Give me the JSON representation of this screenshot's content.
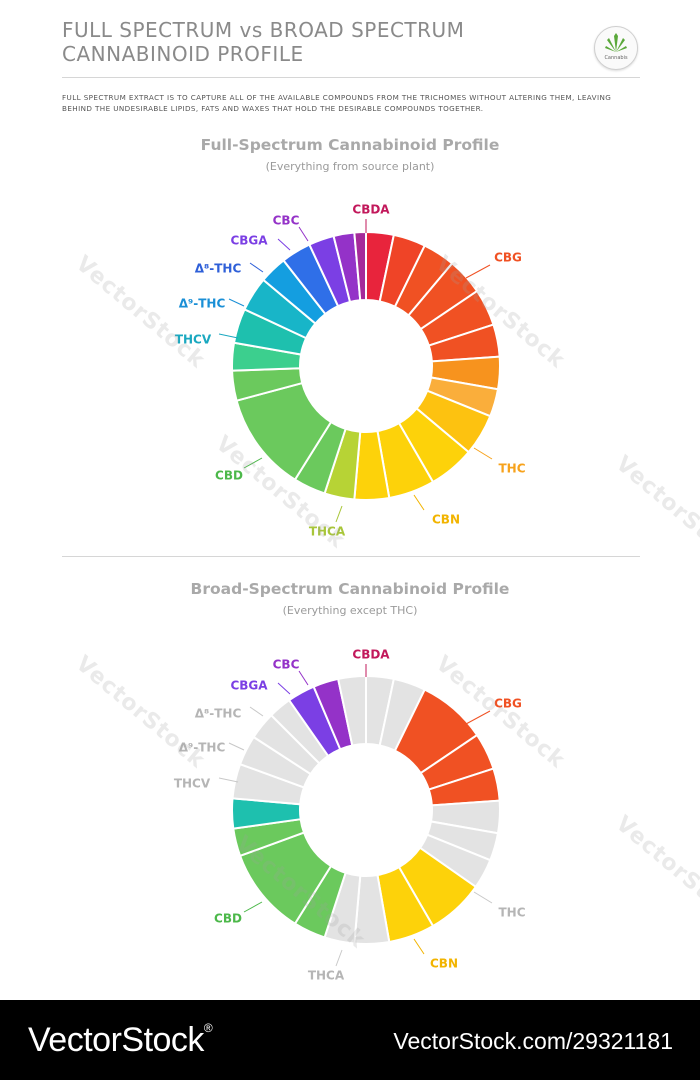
{
  "header": {
    "title_line1": "FULL SPECTRUM vs BROAD SPECTRUM",
    "title_line2": "CANNABINOID PROFILE",
    "logo_text": "Cannabis",
    "intro": "Full spectrum extract is to capture all of the available compounds from the trichomes without altering them, leaving behind the undesirable lipids, fats and waxes that hold the desirable compounds together."
  },
  "colors": {
    "inactive": "#e3e3e3",
    "label_inactive": "#b5b5b5",
    "leader": "#c8c8c8"
  },
  "diagrams": [
    {
      "title": "Full-Spectrum Cannabinoid Profile",
      "subtitle": "(Everything from source plant)",
      "segments": [
        {
          "color": "#c2185b",
          "active": true
        },
        {
          "color": "#e8243c",
          "active": true
        },
        {
          "color": "#ef4427",
          "active": true
        },
        {
          "color": "#f05123",
          "active": true
        },
        {
          "color": "#f05123",
          "active": true
        },
        {
          "color": "#f05123",
          "active": true
        },
        {
          "color": "#f05123",
          "active": true
        },
        {
          "color": "#f7931e",
          "active": true
        },
        {
          "color": "#faae3b",
          "active": true
        },
        {
          "color": "#fdc210",
          "active": true
        },
        {
          "color": "#fdd20a",
          "active": true
        },
        {
          "color": "#fdd20a",
          "active": true
        },
        {
          "color": "#fdd20a",
          "active": true
        },
        {
          "color": "#b7d335",
          "active": true
        },
        {
          "color": "#6bc95d",
          "active": true
        },
        {
          "color": "#6bc95d",
          "active": true
        },
        {
          "color": "#6bc95d",
          "active": true
        },
        {
          "color": "#3ccf8e",
          "active": true
        },
        {
          "color": "#1ec0ae",
          "active": true
        },
        {
          "color": "#18b5c8",
          "active": true
        },
        {
          "color": "#149ee0",
          "active": true
        },
        {
          "color": "#2f6fe8",
          "active": true
        },
        {
          "color": "#7b3fe4",
          "active": true
        },
        {
          "color": "#9432c8",
          "active": true
        },
        {
          "color": "#a52a9a",
          "active": true
        }
      ],
      "labels": [
        {
          "text": "CBDA",
          "color": "#c2185b",
          "active": true
        },
        {
          "text": "CBG",
          "color": "#f05123",
          "active": true
        },
        {
          "text": "THC",
          "color": "#f7a21b",
          "active": true
        },
        {
          "text": "CBN",
          "color": "#f2b400",
          "active": true
        },
        {
          "text": "THCA",
          "color": "#a8c639",
          "active": true
        },
        {
          "text": "CBD",
          "color": "#4cb84a",
          "active": true
        },
        {
          "text": "THCV",
          "color": "#1aa8c0",
          "active": true
        },
        {
          "text": "Δ⁹-THC",
          "color": "#1a8fd6",
          "active": true
        },
        {
          "text": "Δ⁸-THC",
          "color": "#2e5fd8",
          "active": true
        },
        {
          "text": "CBGA",
          "color": "#7b3fe4",
          "active": true
        },
        {
          "text": "CBC",
          "color": "#9432c8",
          "active": true
        }
      ]
    },
    {
      "title": "Broad-Spectrum Cannabinoid Profile",
      "subtitle": "(Everything except THC)",
      "segments": [
        {
          "color": "#c2185b",
          "active": true
        },
        {
          "color": "#e3e3e3",
          "active": false
        },
        {
          "color": "#e3e3e3",
          "active": false
        },
        {
          "color": "#f05123",
          "active": true
        },
        {
          "color": "#f05123",
          "active": true
        },
        {
          "color": "#f05123",
          "active": true
        },
        {
          "color": "#e3e3e3",
          "active": false
        },
        {
          "color": "#e3e3e3",
          "active": false
        },
        {
          "color": "#e3e3e3",
          "active": false
        },
        {
          "color": "#fdd20a",
          "active": true
        },
        {
          "color": "#fdd20a",
          "active": true
        },
        {
          "color": "#e3e3e3",
          "active": false
        },
        {
          "color": "#e3e3e3",
          "active": false
        },
        {
          "color": "#6bc95d",
          "active": true
        },
        {
          "color": "#6bc95d",
          "active": true
        },
        {
          "color": "#6bc95d",
          "active": true
        },
        {
          "color": "#1ec0ae",
          "active": true
        },
        {
          "color": "#e3e3e3",
          "active": false
        },
        {
          "color": "#e3e3e3",
          "active": false
        },
        {
          "color": "#e3e3e3",
          "active": false
        },
        {
          "color": "#e3e3e3",
          "active": false
        },
        {
          "color": "#7b3fe4",
          "active": true
        },
        {
          "color": "#9432c8",
          "active": true
        },
        {
          "color": "#e3e3e3",
          "active": false
        }
      ],
      "labels": [
        {
          "text": "CBDA",
          "color": "#c2185b",
          "active": true
        },
        {
          "text": "CBG",
          "color": "#f05123",
          "active": true
        },
        {
          "text": "THC",
          "color": "#b5b5b5",
          "active": false
        },
        {
          "text": "CBN",
          "color": "#f2b400",
          "active": true
        },
        {
          "text": "THCA",
          "color": "#b5b5b5",
          "active": false
        },
        {
          "text": "CBD",
          "color": "#4cb84a",
          "active": true
        },
        {
          "text": "THCV",
          "color": "#b5b5b5",
          "active": false
        },
        {
          "text": "Δ⁹-THC",
          "color": "#b5b5b5",
          "active": false
        },
        {
          "text": "Δ⁸-THC",
          "color": "#b5b5b5",
          "active": false
        },
        {
          "text": "CBGA",
          "color": "#7b3fe4",
          "active": true
        },
        {
          "text": "CBC",
          "color": "#9432c8",
          "active": true
        }
      ]
    }
  ],
  "watermark": "VectorStock",
  "footer": {
    "brand": "VectorStock",
    "brand_reg": "®",
    "url": "VectorStock.com/29321181"
  }
}
